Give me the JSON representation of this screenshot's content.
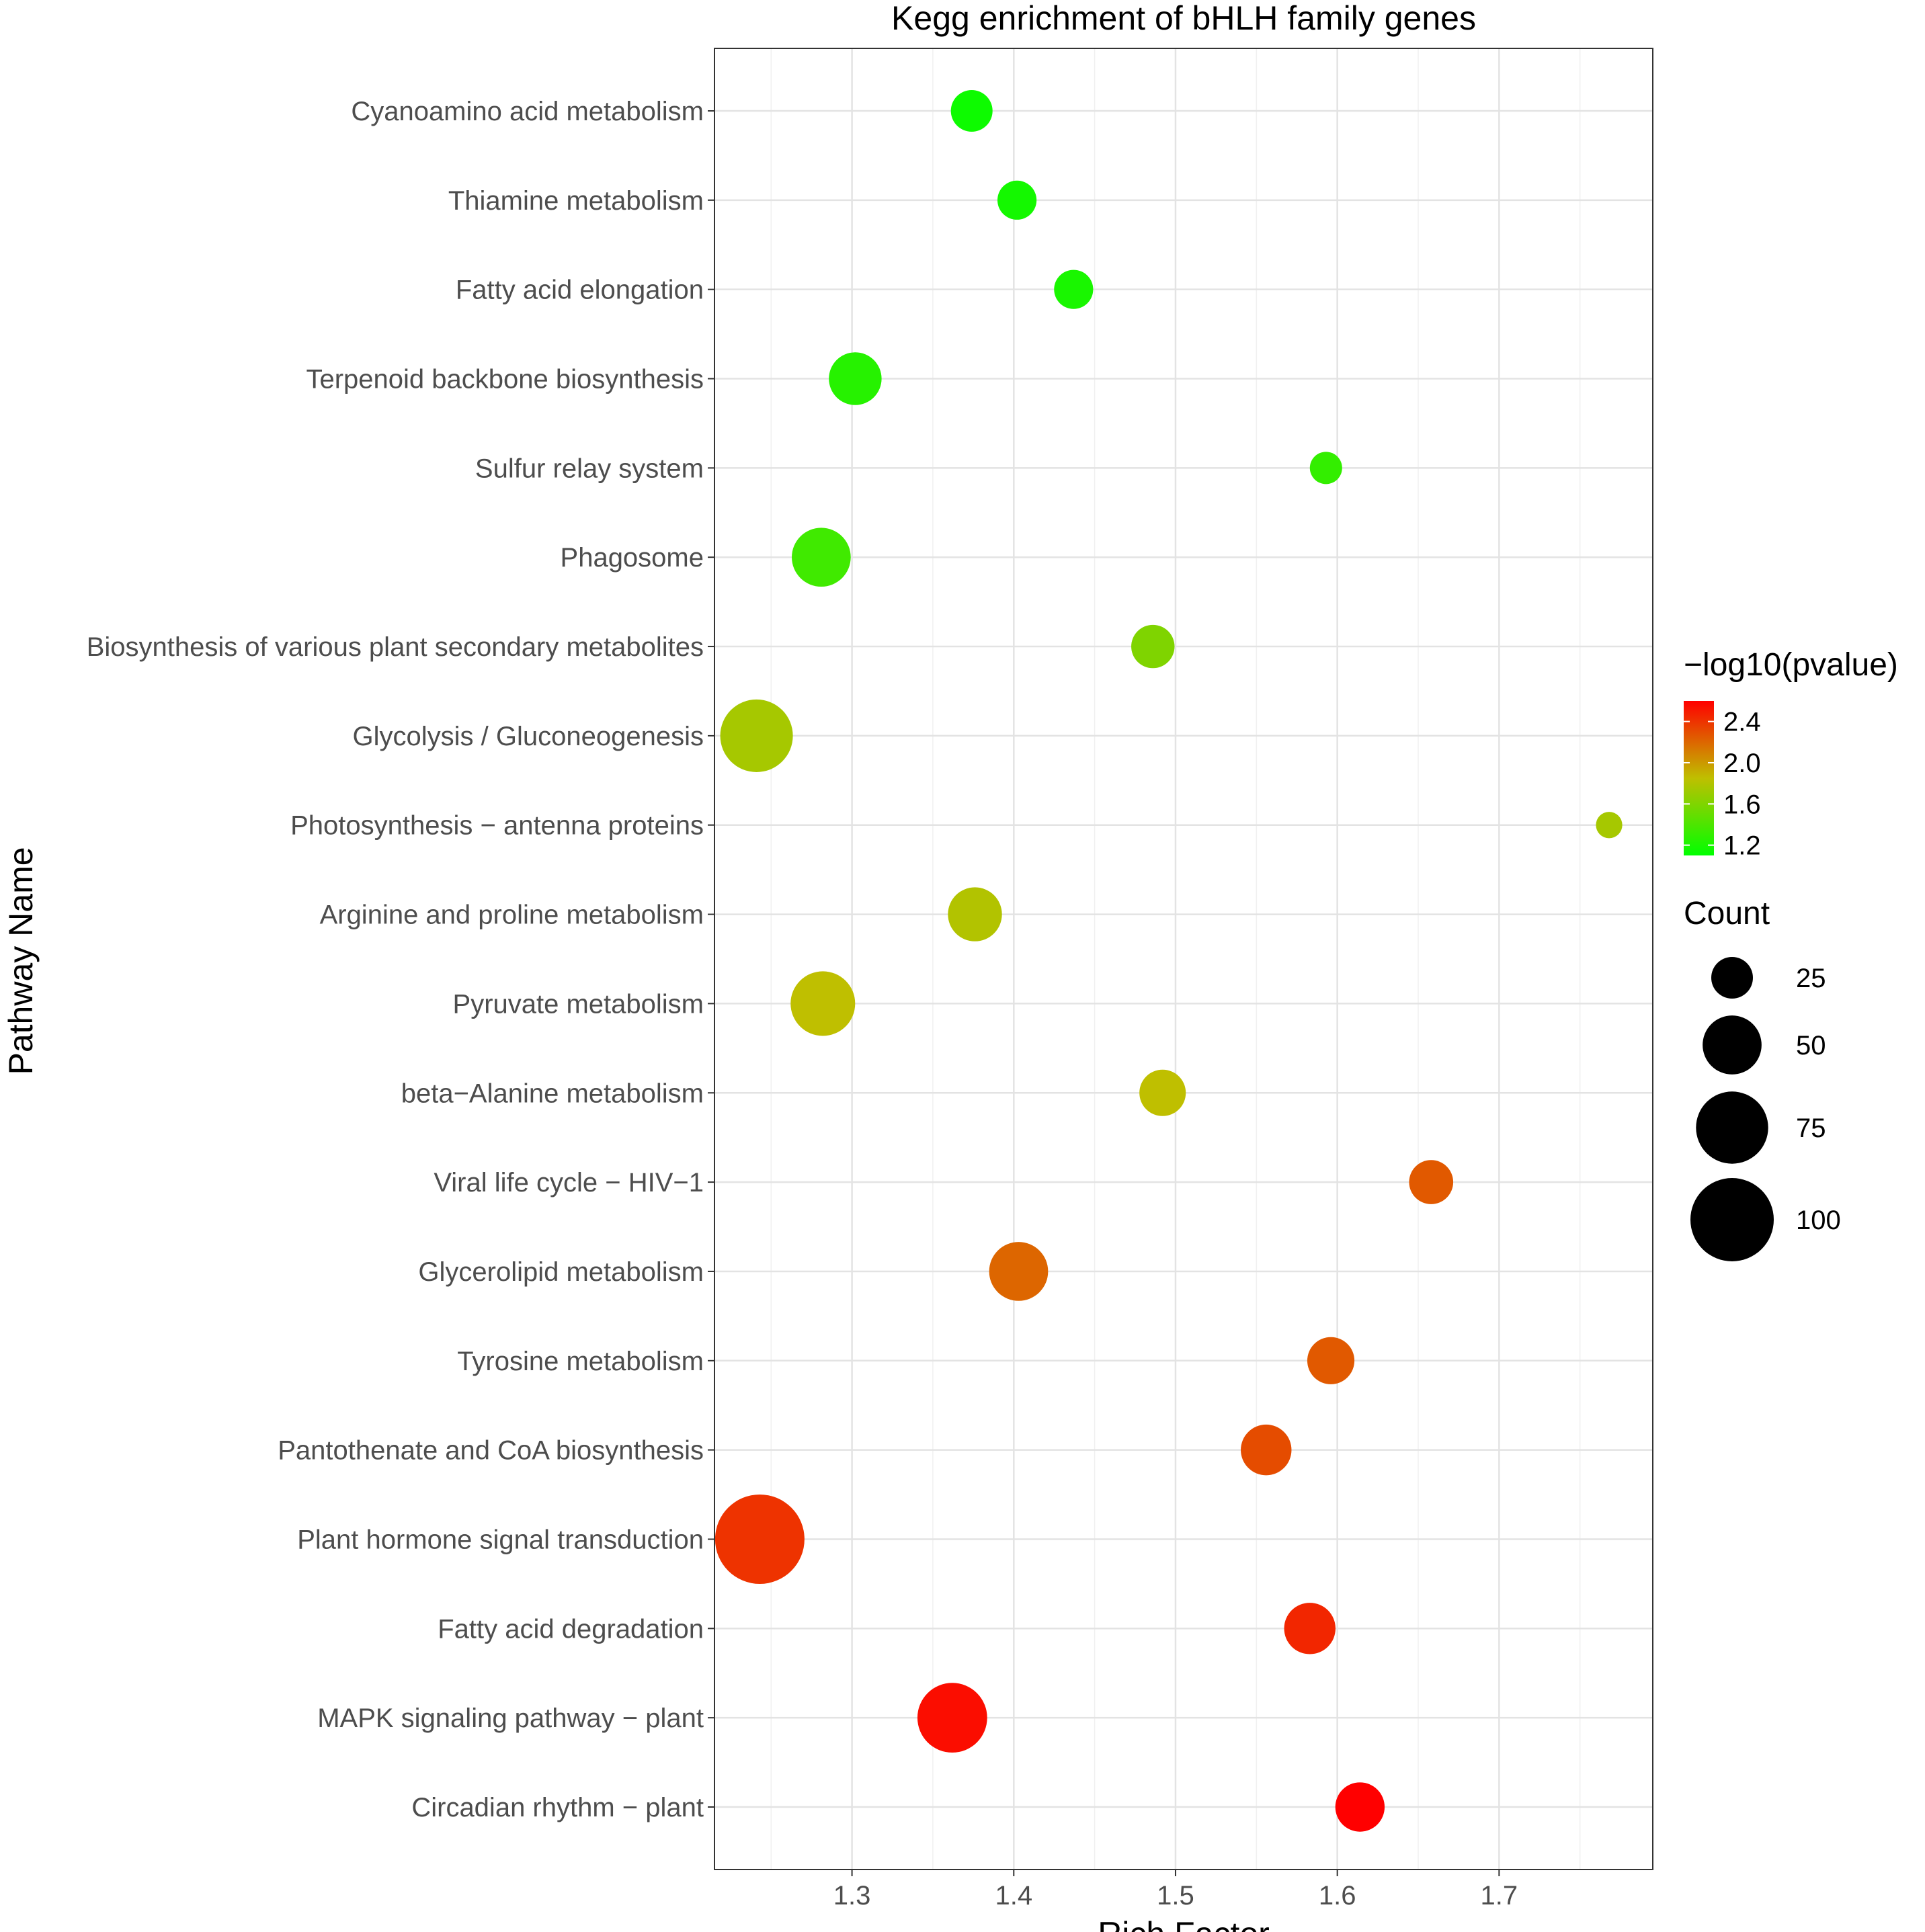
{
  "chart_data": {
    "type": "scatter",
    "title": "Kegg enrichment of bHLH family genes",
    "xlabel": "Rich Factor",
    "ylabel": "Pathway Name",
    "xlim": [
      1.215,
      1.795
    ],
    "x_ticks": [
      "1.3",
      "1.4",
      "1.5",
      "1.6",
      "1.7"
    ],
    "x_tick_values": [
      1.3,
      1.4,
      1.5,
      1.6,
      1.7
    ],
    "grid": true,
    "legend_placement": "right",
    "color_legend": {
      "title": "−log10(pvalue)",
      "min": 1.1,
      "max": 2.6,
      "ticks": [
        "2.4",
        "2.0",
        "1.6",
        "1.2"
      ],
      "tick_values": [
        2.4,
        2.0,
        1.6,
        1.2
      ],
      "low_color": "#00ff00",
      "mid_color": "#bfbf00",
      "high_color": "#ff0000"
    },
    "size_legend": {
      "title": "Count",
      "labels": [
        "25",
        "50",
        "75",
        "100"
      ],
      "values": [
        25,
        50,
        75,
        100
      ]
    },
    "points": [
      {
        "pathway": "Cyanoamino acid metabolism",
        "x": 1.374,
        "pvalue": 1.15,
        "count": 25
      },
      {
        "pathway": "Thiamine metabolism",
        "x": 1.402,
        "pvalue": 1.18,
        "count": 22
      },
      {
        "pathway": "Fatty acid elongation",
        "x": 1.437,
        "pvalue": 1.2,
        "count": 22
      },
      {
        "pathway": "Terpenoid backbone biosynthesis",
        "x": 1.302,
        "pvalue": 1.25,
        "count": 40
      },
      {
        "pathway": "Sulfur relay system",
        "x": 1.593,
        "pvalue": 1.3,
        "count": 15
      },
      {
        "pathway": "Phagosome",
        "x": 1.281,
        "pvalue": 1.35,
        "count": 50
      },
      {
        "pathway": "Biosynthesis of various plant secondary metabolites",
        "x": 1.486,
        "pvalue": 1.6,
        "count": 27
      },
      {
        "pathway": "Glycolysis / Gluconeogenesis",
        "x": 1.241,
        "pvalue": 1.75,
        "count": 76
      },
      {
        "pathway": "Photosynthesis − antenna proteins",
        "x": 1.768,
        "pvalue": 1.75,
        "count": 10
      },
      {
        "pathway": "Arginine and proline metabolism",
        "x": 1.376,
        "pvalue": 1.8,
        "count": 42
      },
      {
        "pathway": "Pyruvate metabolism",
        "x": 1.282,
        "pvalue": 1.85,
        "count": 60
      },
      {
        "pathway": "beta−Alanine metabolism",
        "x": 1.492,
        "pvalue": 1.85,
        "count": 31
      },
      {
        "pathway": "Viral life cycle − HIV−1",
        "x": 1.658,
        "pvalue": 2.25,
        "count": 28
      },
      {
        "pathway": "Glycerolipid metabolism",
        "x": 1.403,
        "pvalue": 2.2,
        "count": 50
      },
      {
        "pathway": "Tyrosine metabolism",
        "x": 1.596,
        "pvalue": 2.25,
        "count": 32
      },
      {
        "pathway": "Pantothenate and CoA biosynthesis",
        "x": 1.556,
        "pvalue": 2.3,
        "count": 37
      },
      {
        "pathway": "Plant hormone signal transduction",
        "x": 1.243,
        "pvalue": 2.4,
        "count": 115
      },
      {
        "pathway": "Fatty acid degradation",
        "x": 1.583,
        "pvalue": 2.45,
        "count": 38
      },
      {
        "pathway": "MAPK signaling pathway − plant",
        "x": 1.362,
        "pvalue": 2.55,
        "count": 70
      },
      {
        "pathway": "Circadian rhythm − plant",
        "x": 1.614,
        "pvalue": 2.6,
        "count": 35
      }
    ]
  }
}
